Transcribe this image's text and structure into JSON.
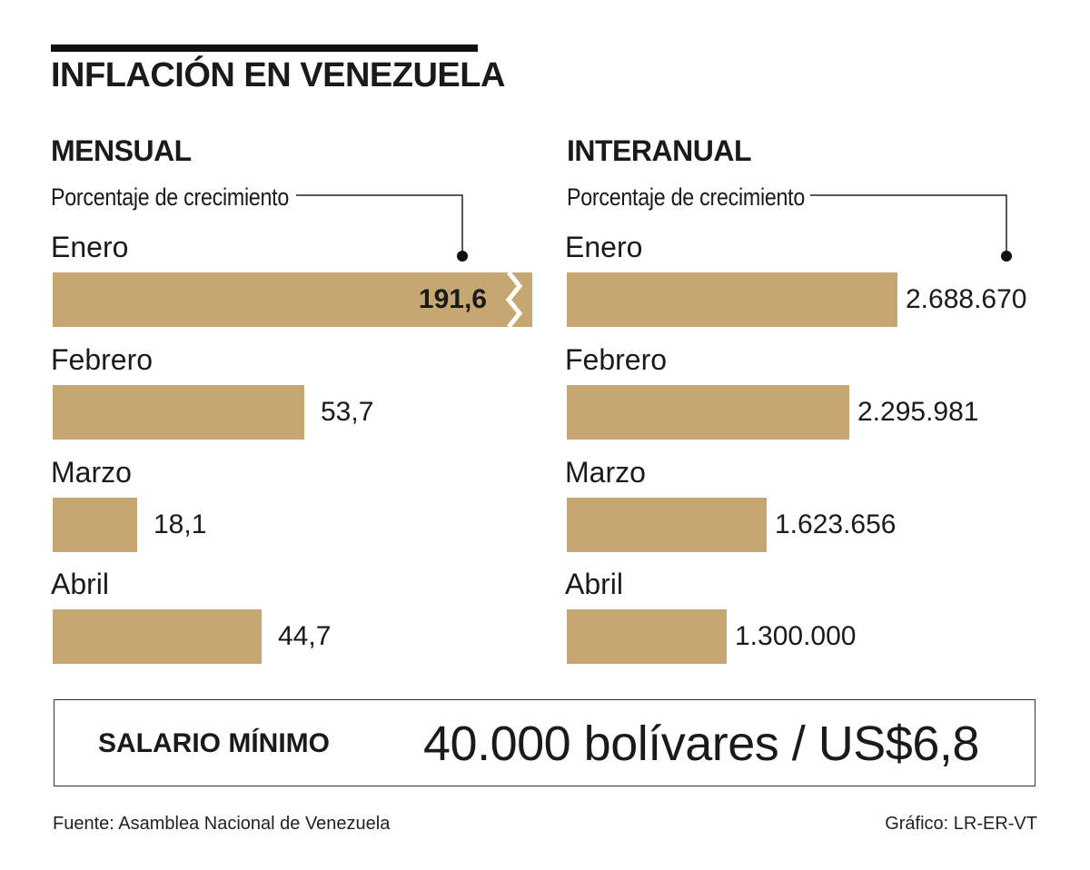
{
  "chart_data": [
    {
      "type": "bar",
      "orientation": "horizontal",
      "title": "MENSUAL",
      "subtitle": "Porcentaje de crecimiento",
      "categories": [
        "Enero",
        "Febrero",
        "Marzo",
        "Abril"
      ],
      "values": [
        191.6,
        53.7,
        18.1,
        44.7
      ],
      "value_labels": [
        "191,6",
        "53,7",
        "18,1",
        "44,7"
      ],
      "truncated": [
        true,
        false,
        false,
        false
      ],
      "bar_color": "#c6a771"
    },
    {
      "type": "bar",
      "orientation": "horizontal",
      "title": "INTERANUAL",
      "subtitle": "Porcentaje de crecimiento",
      "categories": [
        "Enero",
        "Febrero",
        "Marzo",
        "Abril"
      ],
      "values": [
        2688670,
        2295981,
        1623656,
        1300000
      ],
      "value_labels": [
        "2.688.670",
        "2.295.981",
        "1.623.656",
        "1.300.000"
      ],
      "truncated": [
        false,
        false,
        false,
        false
      ],
      "bar_color": "#c6a771"
    }
  ],
  "header": {
    "title": "INFLACIÓN EN VENEZUELA"
  },
  "salary": {
    "label": "SALARIO MÍNIMO",
    "value": "40.000 bolívares / US$6,8"
  },
  "footer": {
    "source": "Fuente: Asamblea Nacional de Venezuela",
    "credit": "Gráfico: LR-ER-VT"
  }
}
